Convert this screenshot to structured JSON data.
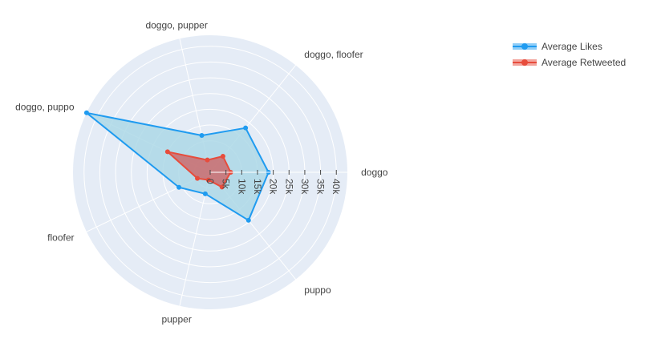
{
  "chart_data": {
    "type": "radar",
    "categories": [
      "doggo",
      "doggo, floofer",
      "doggo, pupper",
      "doggo, puppo",
      "floofer",
      "pupper",
      "puppo"
    ],
    "series": [
      {
        "name": "Average Likes",
        "values": [
          18500,
          18000,
          12000,
          43500,
          11000,
          7000,
          19500
        ],
        "color": "#1f9bf0",
        "fill": "#add8e6"
      },
      {
        "name": "Average Retweeted",
        "values": [
          6500,
          6500,
          4000,
          15000,
          4500,
          2500,
          6000
        ],
        "color": "#e74c3c",
        "fill": "#cd5c5c"
      }
    ],
    "radial_ticks": [
      "0",
      "5k",
      "10k",
      "15k",
      "20k",
      "25k",
      "30k",
      "35k",
      "40k"
    ],
    "radial_range": [
      0,
      43500
    ],
    "grid": true,
    "legend_position": "top-right"
  }
}
